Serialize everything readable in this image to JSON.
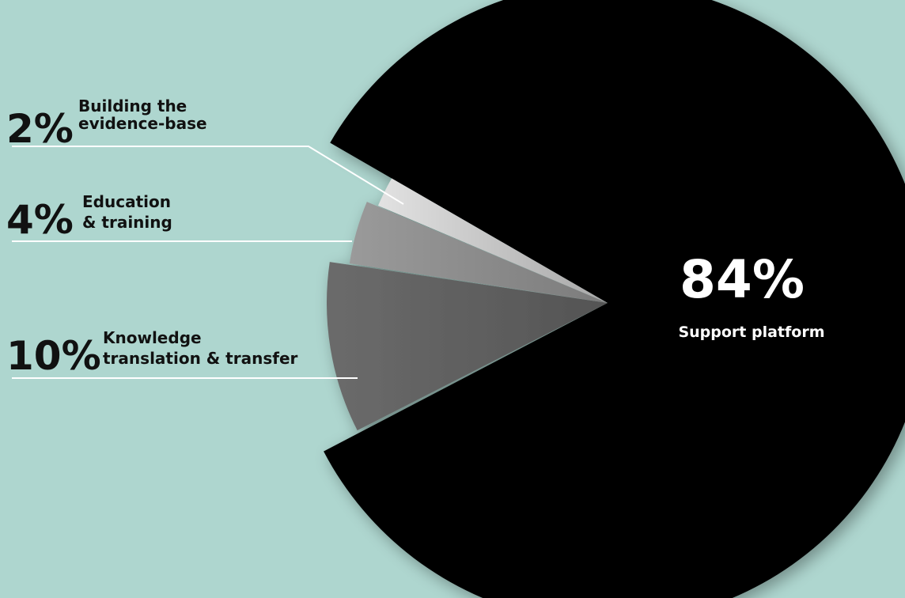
{
  "chart_data": {
    "type": "pie",
    "slices": [
      {
        "label": "Support platform",
        "value": 84,
        "value_label": "84%",
        "color": "#000000"
      },
      {
        "label": "Knowledge translation & transfer",
        "label_lines": [
          "Knowledge",
          "translation & transfer"
        ],
        "value": 10,
        "value_label": "10%",
        "color": "#5e5e5e"
      },
      {
        "label": "Education & training",
        "label_lines": [
          "Education",
          "& training"
        ],
        "value": 4,
        "value_label": "4%",
        "color": "#8e8e8e"
      },
      {
        "label": "Building the evidence-base",
        "label_lines": [
          "Building the",
          "evidence-base"
        ],
        "value": 2,
        "value_label": "2%",
        "color": "#c4c4c4"
      }
    ],
    "legend": "left, with leader lines",
    "grid": false
  },
  "colors": {
    "background": "#aed6cf",
    "leader_line": "#ffffff",
    "label_text": "#111111",
    "main_label_text": "#ffffff"
  }
}
